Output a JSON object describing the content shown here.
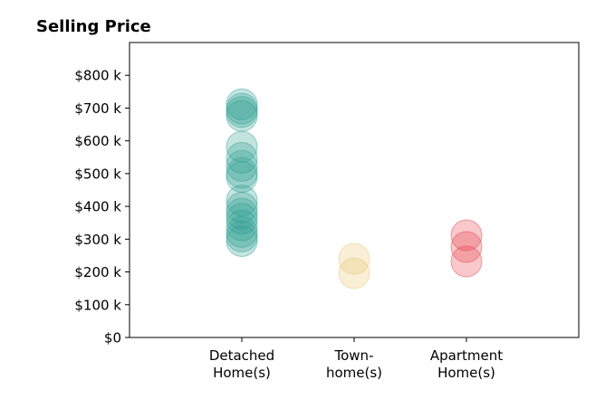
{
  "chart_data": {
    "type": "scatter",
    "title": "Selling Price",
    "xlabel": "",
    "ylabel": "",
    "categories": [
      "Detached\nHome(s)",
      "Town-\nhome(s)",
      "Apartment\nHome(s)"
    ],
    "ylim": [
      0,
      900
    ],
    "xlim": [
      -1,
      3
    ],
    "yticks": [
      0,
      100,
      200,
      300,
      400,
      500,
      600,
      700,
      800
    ],
    "ytick_labels": [
      "$0",
      "$100 k",
      "$200 k",
      "$300 k",
      "$400 k",
      "$500 k",
      "$600 k",
      "$700 k",
      "$800 k"
    ],
    "grid": false,
    "series": [
      {
        "category": "Detached\nHome(s)",
        "color": "#2a9d8f",
        "values": [
          712,
          698,
          688,
          676,
          582,
          548,
          524,
          502,
          490,
          418,
          396,
          378,
          362,
          342,
          322,
          308,
          294
        ]
      },
      {
        "category": "Town-\nhome(s)",
        "color": "#e9c46a",
        "values": [
          240,
          196
        ]
      },
      {
        "category": "Apartment\nHome(s)",
        "color": "#e63946",
        "values": [
          312,
          276,
          232
        ]
      }
    ]
  }
}
